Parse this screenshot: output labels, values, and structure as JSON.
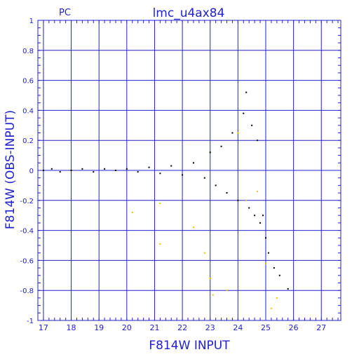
{
  "chart_data": {
    "type": "scatter",
    "title": "lmc_u4ax84",
    "corner_label": "PC",
    "xlabel": "F814W INPUT",
    "ylabel": "F814W (OBS-INPUT)",
    "xlim": [
      16.8,
      27.7
    ],
    "ylim": [
      -1,
      1
    ],
    "x_ticks": [
      "17",
      "18",
      "19",
      "20",
      "21",
      "22",
      "23",
      "24",
      "25",
      "26",
      "27"
    ],
    "y_ticks": [
      "1",
      "0.8",
      "0.6",
      "0.4",
      "0.2",
      "0",
      "-0.2",
      "-0.4",
      "-0.6",
      "-0.8",
      "-1"
    ],
    "grid": true,
    "colors": {
      "axis": "#2222cc",
      "points": "#000000",
      "highlight": "#e8c400"
    },
    "series": [
      {
        "color": "black",
        "points": [
          [
            17.0,
            0.0
          ],
          [
            17.3,
            0.01
          ],
          [
            17.6,
            -0.01
          ],
          [
            18.0,
            0.0
          ],
          [
            18.4,
            0.01
          ],
          [
            18.8,
            -0.01
          ],
          [
            19.2,
            0.01
          ],
          [
            19.6,
            0.0
          ],
          [
            20.0,
            0.01
          ],
          [
            20.4,
            -0.01
          ],
          [
            20.8,
            0.02
          ],
          [
            21.2,
            -0.02
          ],
          [
            21.6,
            0.03
          ],
          [
            22.0,
            -0.03
          ],
          [
            22.4,
            0.05
          ],
          [
            22.8,
            -0.05
          ],
          [
            23.0,
            0.12
          ],
          [
            23.2,
            -0.1
          ],
          [
            23.4,
            0.16
          ],
          [
            23.6,
            -0.15
          ],
          [
            23.8,
            0.25
          ],
          [
            24.0,
            -0.2
          ],
          [
            24.2,
            0.38
          ],
          [
            24.3,
            0.52
          ],
          [
            24.4,
            -0.25
          ],
          [
            24.5,
            0.3
          ],
          [
            24.6,
            -0.3
          ],
          [
            24.7,
            0.2
          ],
          [
            24.8,
            -0.35
          ],
          [
            24.9,
            -0.3
          ],
          [
            25.0,
            -0.45
          ],
          [
            25.1,
            -0.55
          ],
          [
            25.3,
            -0.65
          ],
          [
            25.5,
            -0.7
          ],
          [
            25.8,
            -0.79
          ]
        ]
      },
      {
        "color": "yellow",
        "points": [
          [
            20.2,
            -0.28
          ],
          [
            21.2,
            -0.22
          ],
          [
            21.2,
            -0.49
          ],
          [
            22.4,
            -0.38
          ],
          [
            22.8,
            -0.55
          ],
          [
            23.0,
            -0.72
          ],
          [
            23.1,
            -0.83
          ],
          [
            23.6,
            -0.8
          ],
          [
            24.0,
            0.25
          ],
          [
            24.3,
            -0.2
          ],
          [
            24.7,
            -0.14
          ],
          [
            25.0,
            -0.62
          ],
          [
            25.2,
            -0.92
          ],
          [
            25.4,
            -0.85
          ]
        ]
      }
    ]
  }
}
